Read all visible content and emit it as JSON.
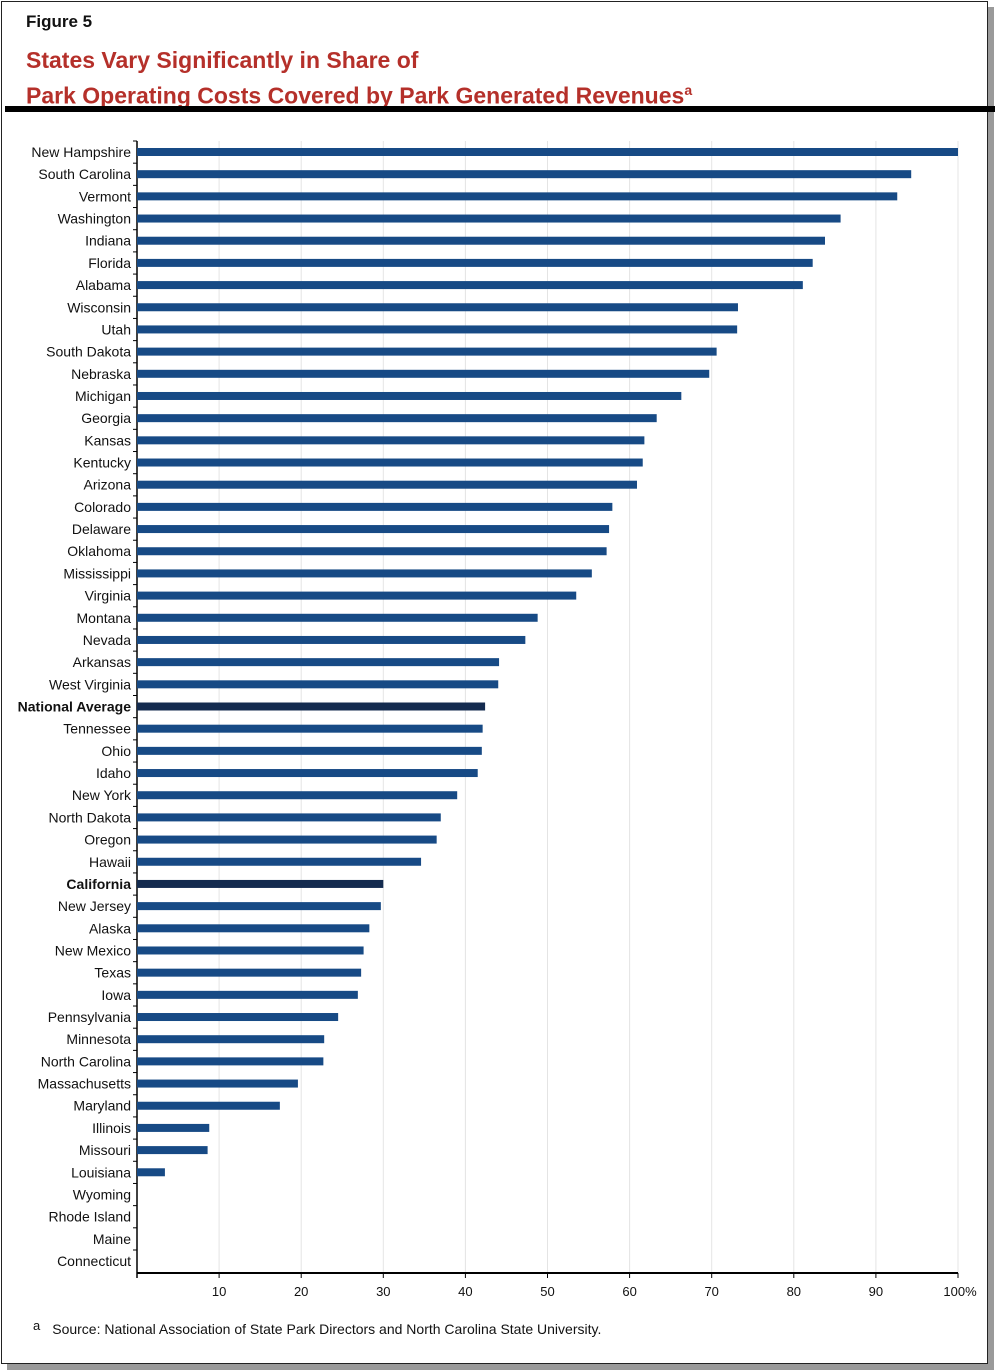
{
  "figure_label": "Figure 5",
  "title_line1": "States Vary Significantly in Share of",
  "title_line2": "Park Operating Costs Covered by Park Generated Revenues",
  "title_footnote_marker": "a",
  "footnote_marker": "a",
  "footnote": "Source: National Association of State Park Directors and North Carolina State University.",
  "colors": {
    "bar": "#174a85",
    "highlight": "#142b4f",
    "title": "#b5302a"
  },
  "chart_data": {
    "type": "bar",
    "orientation": "horizontal",
    "xlim": [
      0,
      100
    ],
    "grid": true,
    "ticks": [
      "10",
      "20",
      "30",
      "40",
      "50",
      "60",
      "70",
      "80",
      "90",
      "100%"
    ],
    "tick_values": [
      10,
      20,
      30,
      40,
      50,
      60,
      70,
      80,
      90,
      100
    ],
    "categories": [
      "New Hampshire",
      "South Carolina",
      "Vermont",
      "Washington",
      "Indiana",
      "Florida",
      "Alabama",
      "Wisconsin",
      "Utah",
      "South Dakota",
      "Nebraska",
      "Michigan",
      "Georgia",
      "Kansas",
      "Kentucky",
      "Arizona",
      "Colorado",
      "Delaware",
      "Oklahoma",
      "Mississippi",
      "Virginia",
      "Montana",
      "Nevada",
      "Arkansas",
      "West Virginia",
      "National Average",
      "Tennessee",
      "Ohio",
      "Idaho",
      "New York",
      "North Dakota",
      "Oregon",
      "Hawaii",
      "California",
      "New Jersey",
      "Alaska",
      "New Mexico",
      "Texas",
      "Iowa",
      "Pennsylvania",
      "Minnesota",
      "North Carolina",
      "Massachusetts",
      "Maryland",
      "Illinois",
      "Missouri",
      "Louisiana",
      "Wyoming",
      "Rhode Island",
      "Maine",
      "Connecticut"
    ],
    "values": [
      100,
      94.3,
      92.6,
      85.7,
      83.8,
      82.3,
      81.1,
      73.2,
      73.1,
      70.6,
      69.7,
      66.3,
      63.3,
      61.8,
      61.6,
      60.9,
      57.9,
      57.5,
      57.2,
      55.4,
      53.5,
      48.8,
      47.3,
      44.1,
      44.0,
      42.4,
      42.1,
      42.0,
      41.5,
      39.0,
      37.0,
      36.5,
      34.6,
      30.0,
      29.7,
      28.3,
      27.6,
      27.3,
      26.9,
      24.5,
      22.8,
      22.7,
      19.6,
      17.4,
      8.8,
      8.6,
      3.4,
      0,
      0,
      0,
      0
    ],
    "highlighted": [
      "National Average",
      "California"
    ]
  }
}
